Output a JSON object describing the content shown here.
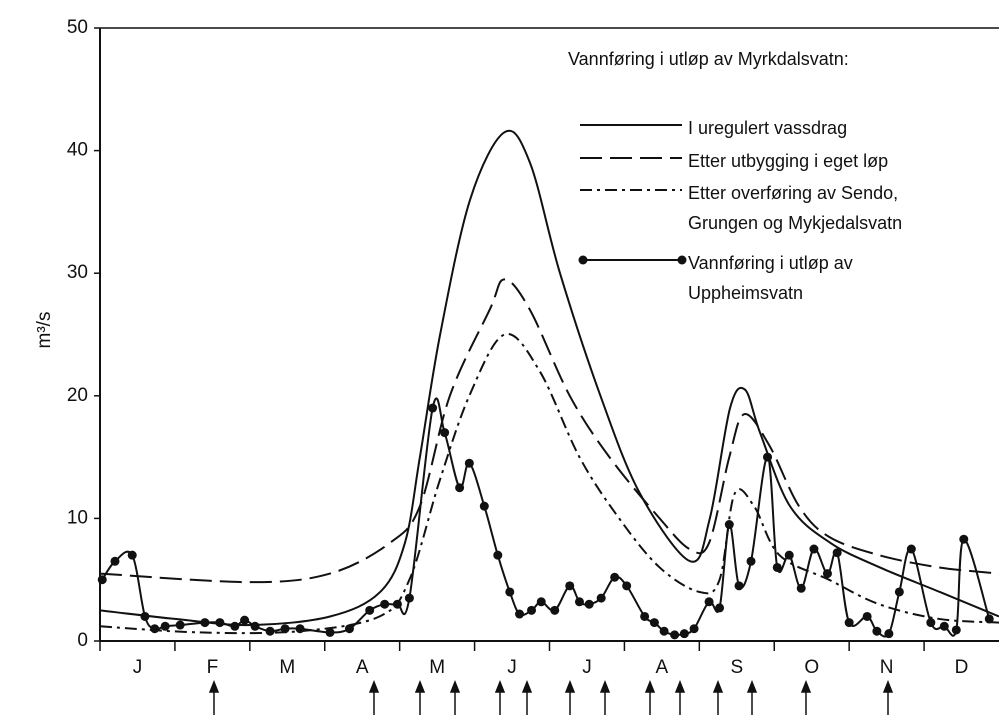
{
  "chart_data": {
    "type": "line",
    "y_label": "m³/s",
    "legend_title": "Vannføring i utløp av Myrkdalsvatn:",
    "categories": [
      "J",
      "F",
      "M",
      "A",
      "M",
      "J",
      "J",
      "A",
      "S",
      "O",
      "N",
      "D"
    ],
    "xlim": [
      0,
      12
    ],
    "ylim": [
      0,
      50
    ],
    "yticks": [
      0,
      10,
      20,
      30,
      40,
      50
    ],
    "series": [
      {
        "name": "I uregulert vassdrag",
        "color": "#111111",
        "style": "solid",
        "markers": false,
        "x": [
          0,
          1.0,
          2.0,
          3.07,
          3.74,
          4.07,
          4.27,
          4.54,
          4.94,
          5.4,
          5.74,
          6.14,
          6.68,
          7.21,
          7.88,
          8.14,
          8.41,
          8.61,
          8.81,
          9.21,
          9.75,
          10.41,
          11.21,
          12
        ],
        "values": [
          2.5,
          1.8,
          1.3,
          2,
          4,
          8,
          15,
          25,
          36,
          41.5,
          39,
          30,
          20,
          12,
          6.5,
          10,
          19,
          20.5,
          17,
          11,
          8,
          6,
          4,
          2
        ]
      },
      {
        "name": "Etter utbygging i eget løp",
        "color": "#111111",
        "style": "long-dash",
        "markers": false,
        "x": [
          0,
          2.0,
          3.07,
          3.87,
          4.27,
          4.67,
          5.2,
          5.4,
          5.74,
          6.27,
          6.8,
          7.47,
          7.87,
          8.13,
          8.4,
          8.6,
          8.93,
          9.33,
          9.73,
          10.4,
          11.2,
          12
        ],
        "values": [
          5.5,
          4.8,
          5.5,
          8,
          11,
          20,
          27,
          29.5,
          27,
          20,
          15,
          10,
          7.5,
          8,
          15,
          18.5,
          16,
          11,
          8.5,
          7,
          6,
          5.5
        ]
      },
      {
        "name": "Etter overføring av Sendo,\nGrungen og Mykjedalsvatn",
        "color": "#111111",
        "style": "dash-dot",
        "markers": false,
        "x": [
          0,
          1.33,
          2.67,
          3.73,
          4.13,
          4.53,
          4.93,
          5.4,
          5.87,
          6.4,
          6.93,
          7.47,
          8.0,
          8.27,
          8.47,
          8.73,
          9.07,
          9.73,
          10.4,
          11.2,
          12
        ],
        "values": [
          1.2,
          0.7,
          0.8,
          2,
          5,
          13,
          20,
          25,
          22,
          15,
          10,
          6,
          4,
          5,
          12,
          11,
          7,
          5,
          3,
          1.8,
          1.5
        ]
      },
      {
        "name": "Vannføring i utløp av\nUppheimsvatn",
        "color": "#111111",
        "style": "solid",
        "markers": true,
        "x": [
          0.03,
          0.2,
          0.43,
          0.6,
          0.73,
          0.87,
          1.07,
          1.4,
          1.6,
          1.8,
          1.93,
          2.07,
          2.27,
          2.47,
          2.67,
          3.07,
          3.33,
          3.6,
          3.8,
          3.97,
          4.13,
          4.44,
          4.6,
          4.8,
          4.93,
          5.13,
          5.31,
          5.47,
          5.6,
          5.76,
          5.89,
          6.07,
          6.27,
          6.4,
          6.53,
          6.69,
          6.87,
          7.03,
          7.27,
          7.4,
          7.53,
          7.67,
          7.8,
          7.93,
          8.13,
          8.27,
          8.4,
          8.53,
          8.69,
          8.91,
          9.04,
          9.2,
          9.36,
          9.53,
          9.71,
          9.84,
          10.0,
          10.24,
          10.37,
          10.53,
          10.67,
          10.83,
          11.09,
          11.27,
          11.43,
          11.53,
          11.87
        ],
        "values": [
          5,
          6.5,
          7,
          2,
          1,
          1.2,
          1.3,
          1.5,
          1.5,
          1.2,
          1.7,
          1.2,
          0.8,
          1.0,
          1.0,
          0.7,
          1.0,
          2.5,
          3,
          3,
          3.5,
          19,
          17,
          12.5,
          14.5,
          11,
          7,
          4,
          2.2,
          2.5,
          3.2,
          2.5,
          4.5,
          3.2,
          3,
          3.5,
          5.2,
          4.5,
          2,
          1.5,
          0.8,
          0.5,
          0.6,
          1,
          3.2,
          2.7,
          9.5,
          4.5,
          6.5,
          15,
          6,
          7,
          4.3,
          7.5,
          5.5,
          7.2,
          1.5,
          2,
          0.8,
          0.6,
          4,
          7.5,
          1.5,
          1.2,
          0.9,
          8.3,
          1.8
        ]
      }
    ]
  }
}
